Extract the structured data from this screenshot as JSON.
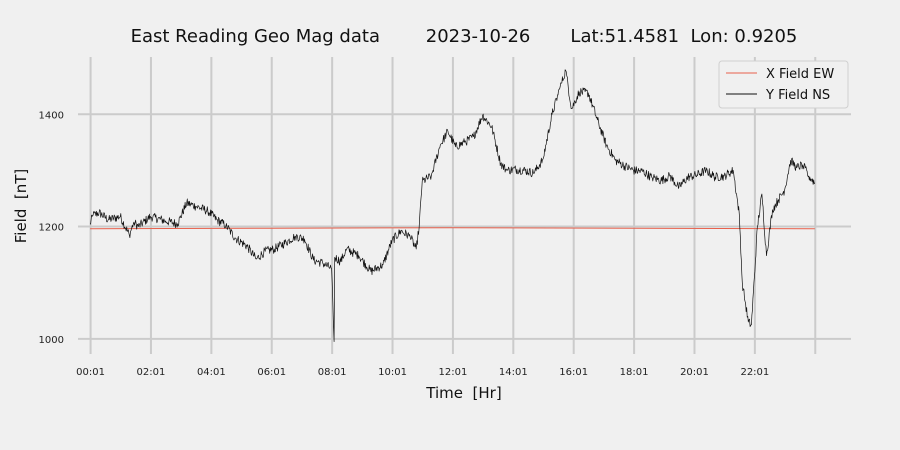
{
  "chart_data": {
    "type": "line",
    "title": "East Reading Geo Mag data        2023-10-26       Lat:51.4581  Lon: 0.9205",
    "xlabel": "Time  [Hr]",
    "ylabel": "Field  [nT]",
    "x_unit": "hours",
    "xlim": [
      -0.4,
      25.2
    ],
    "ylim": [
      973,
      1502
    ],
    "x_ticks": [
      {
        "value": 0.0167,
        "label": "00:01"
      },
      {
        "value": 2.0167,
        "label": "02:01"
      },
      {
        "value": 4.0167,
        "label": "04:01"
      },
      {
        "value": 6.0167,
        "label": "06:01"
      },
      {
        "value": 8.0167,
        "label": "08:01"
      },
      {
        "value": 10.0167,
        "label": "10:01"
      },
      {
        "value": 12.0167,
        "label": "12:01"
      },
      {
        "value": 14.0167,
        "label": "14:01"
      },
      {
        "value": 16.0167,
        "label": "16:01"
      },
      {
        "value": 18.0167,
        "label": "18:01"
      },
      {
        "value": 20.0167,
        "label": "20:01"
      },
      {
        "value": 22.0167,
        "label": "22:01"
      }
    ],
    "x_gridlines": [
      0.0167,
      2.0167,
      4.0167,
      6.0167,
      8.0167,
      10.0167,
      12.0167,
      14.0167,
      16.0167,
      18.0167,
      20.0167,
      22.0167,
      24.0167
    ],
    "y_ticks": [
      1000,
      1200,
      1400
    ],
    "grid": true,
    "legend_position": "top-right",
    "series": [
      {
        "name": "X Field EW",
        "color": "#e8604c",
        "x": [
          0.0,
          6.0,
          12.0,
          18.0,
          24.0
        ],
        "y": [
          1196,
          1197,
          1198,
          1197,
          1196
        ]
      },
      {
        "name": "Y Field NS",
        "color": "#111111",
        "x": [
          0.0,
          0.1,
          0.3,
          0.6,
          1.0,
          1.3,
          1.45,
          1.6,
          2.0,
          2.5,
          2.9,
          3.2,
          3.5,
          3.9,
          4.2,
          4.5,
          4.8,
          5.2,
          5.5,
          5.8,
          6.1,
          6.5,
          6.8,
          7.1,
          7.4,
          7.7,
          8.0,
          8.08,
          8.1,
          8.3,
          8.5,
          8.9,
          9.3,
          9.7,
          10.0,
          10.3,
          10.6,
          10.8,
          10.9,
          11.0,
          11.3,
          11.6,
          11.85,
          12.1,
          12.4,
          12.7,
          13.0,
          13.3,
          13.6,
          13.8,
          14.1,
          14.4,
          14.7,
          15.0,
          15.3,
          15.55,
          15.75,
          15.95,
          16.2,
          16.5,
          16.8,
          17.1,
          17.4,
          17.7,
          18.0,
          18.3,
          18.6,
          18.9,
          19.2,
          19.5,
          19.8,
          20.1,
          20.4,
          20.7,
          21.0,
          21.3,
          21.5,
          21.6,
          21.8,
          21.9,
          22.0,
          22.1,
          22.25,
          22.4,
          22.6,
          22.8,
          23.0,
          23.2,
          23.4,
          23.6,
          23.8,
          24.0
        ],
        "y": [
          1205,
          1220,
          1225,
          1212,
          1218,
          1185,
          1208,
          1200,
          1218,
          1210,
          1205,
          1242,
          1236,
          1228,
          1212,
          1202,
          1180,
          1165,
          1142,
          1156,
          1160,
          1172,
          1183,
          1178,
          1140,
          1135,
          1125,
          995,
          1145,
          1138,
          1160,
          1148,
          1120,
          1132,
          1175,
          1192,
          1182,
          1160,
          1200,
          1280,
          1290,
          1345,
          1370,
          1342,
          1350,
          1360,
          1398,
          1378,
          1312,
          1300,
          1302,
          1300,
          1295,
          1320,
          1400,
          1445,
          1478,
          1410,
          1440,
          1438,
          1390,
          1345,
          1318,
          1308,
          1300,
          1298,
          1288,
          1282,
          1290,
          1270,
          1288,
          1292,
          1300,
          1288,
          1290,
          1300,
          1222,
          1100,
          1030,
          1025,
          1110,
          1200,
          1258,
          1148,
          1230,
          1248,
          1265,
          1318,
          1305,
          1310,
          1290,
          1278
        ]
      }
    ]
  }
}
